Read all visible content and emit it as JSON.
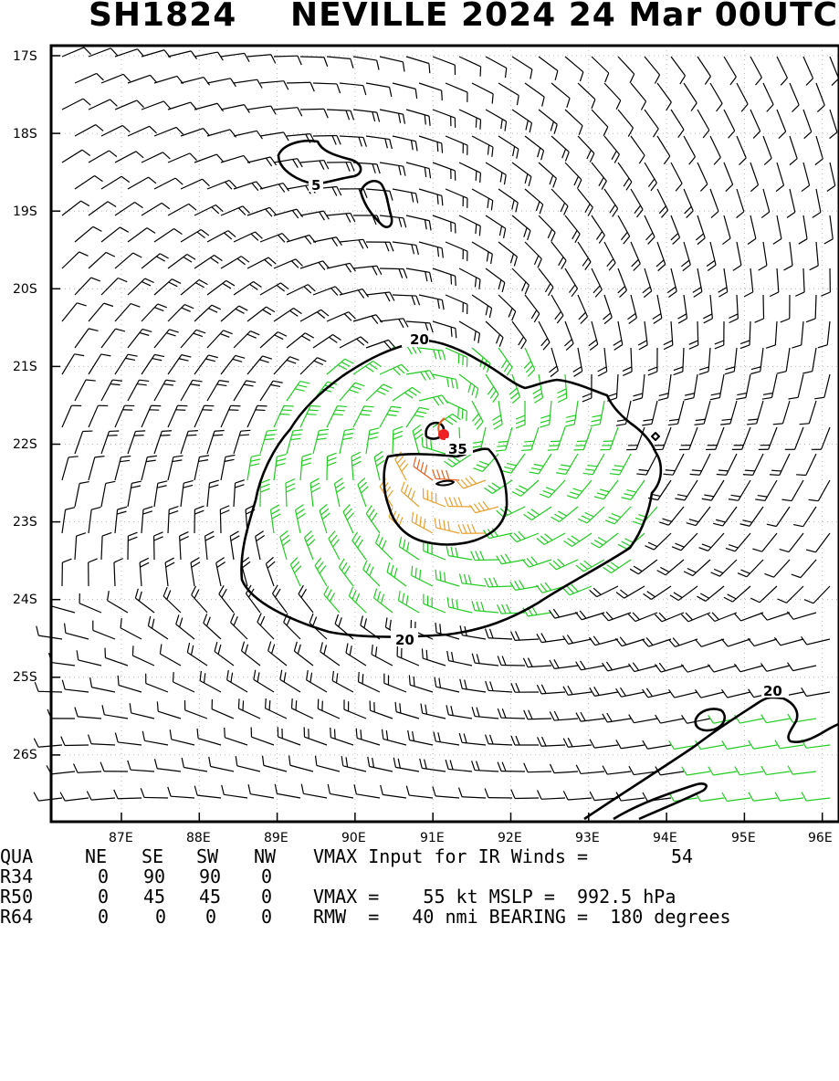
{
  "title": {
    "storm_id": "SH1824",
    "storm_desc": "NEVILLE 2024 24 Mar 00UTC"
  },
  "map": {
    "lat_labels": [
      "17S",
      "18S",
      "19S",
      "20S",
      "21S",
      "22S",
      "23S",
      "24S",
      "25S",
      "26S"
    ],
    "lon_labels": [
      "87E",
      "88E",
      "89E",
      "90E",
      "91E",
      "92E",
      "93E",
      "94E",
      "95E",
      "96E"
    ],
    "contour_labels": [
      "5",
      "20",
      "35",
      "20",
      "20"
    ],
    "center_marker": "red-dot",
    "colors": {
      "below_34kt": "#000000",
      "kt34_to_50": "#22cc22",
      "kt50_to_64": "#e8a030",
      "above_64": "#e86020",
      "center": "#ee2222"
    }
  },
  "info": {
    "quadrant_header": {
      "label": "QUA",
      "ne": "NE",
      "se": "SE",
      "sw": "SW",
      "nw": "NW",
      "text": "VMAX Input for IR Winds =",
      "value": "54"
    },
    "r34": {
      "label": "R34",
      "ne": "0",
      "se": "90",
      "sw": "90",
      "nw": "0"
    },
    "r50": {
      "label": "R50",
      "ne": "0",
      "se": "45",
      "sw": "45",
      "nw": "0",
      "text": "VMAX =    55 kt MSLP =  992.5 hPa"
    },
    "r64": {
      "label": "R64",
      "ne": "0",
      "se": "0",
      "sw": "0",
      "nw": "0",
      "text": "RMW  =   40 nmi BEARING =  180 degrees"
    }
  }
}
